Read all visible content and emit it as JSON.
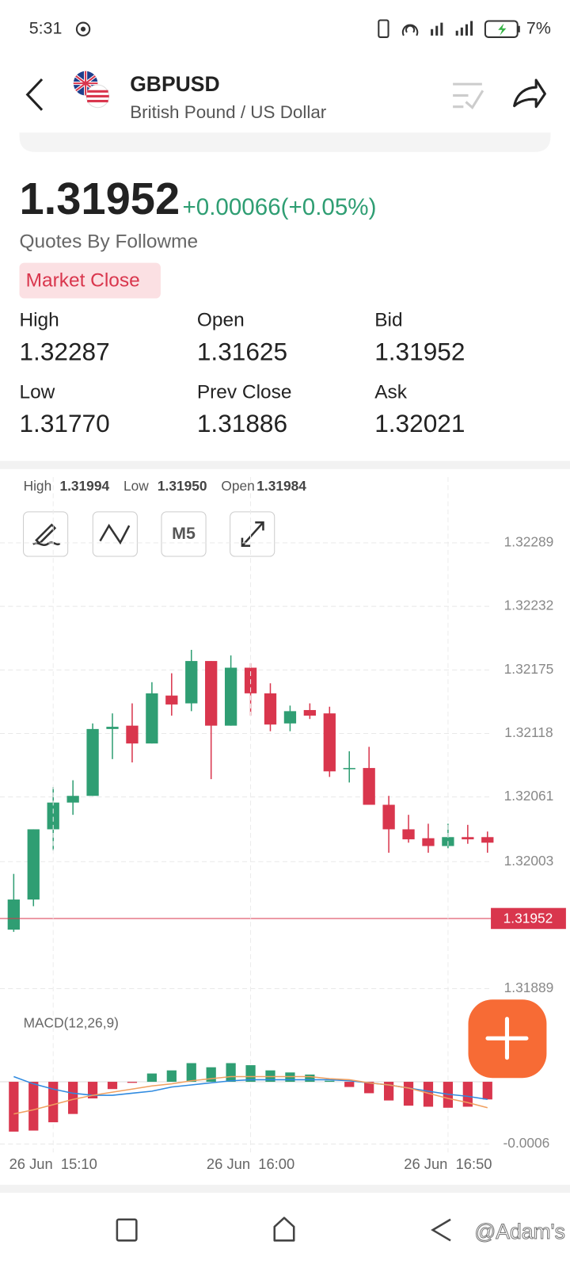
{
  "status_bar": {
    "time": "5:31",
    "battery": "7%"
  },
  "header": {
    "symbol": "GBPUSD",
    "name": "British Pound / US Dollar"
  },
  "quote": {
    "price": "1.31952",
    "change": "+0.00066(+0.05%)",
    "source": "Quotes By Followme",
    "status": "Market Close"
  },
  "stats": [
    {
      "label": "High",
      "value": "1.32287"
    },
    {
      "label": "Open",
      "value": "1.31625"
    },
    {
      "label": "Bid",
      "value": "1.31952"
    },
    {
      "label": "Low",
      "value": "1.31770"
    },
    {
      "label": "Prev Close",
      "value": "1.31886"
    },
    {
      "label": "Ask",
      "value": "1.32021"
    }
  ],
  "chart_toolbar": {
    "info": [
      {
        "label": "High",
        "value": "1.31994"
      },
      {
        "label": "Low",
        "value": "1.31950"
      },
      {
        "label": "Open",
        "value": "1.31984"
      }
    ],
    "period": "M5"
  },
  "chart_data": [
    {
      "type": "candlestick",
      "open": [
        1.31942,
        1.31969,
        1.32032,
        1.32056,
        1.32062,
        1.32122,
        1.32125,
        1.32109,
        1.32152,
        1.32145,
        1.32183,
        1.32125,
        1.32177,
        1.32154,
        1.32127,
        1.32139,
        1.32136,
        1.32086,
        1.32087,
        1.32054,
        1.32032,
        1.32024,
        1.32017,
        1.32025,
        1.32025
      ],
      "high": [
        1.31992,
        1.32032,
        1.3207,
        1.32076,
        1.32127,
        1.32136,
        1.32145,
        1.32164,
        1.32172,
        1.32193,
        1.32183,
        1.32188,
        1.32181,
        1.32163,
        1.32143,
        1.32145,
        1.32142,
        1.32102,
        1.32106,
        1.32062,
        1.32045,
        1.32037,
        1.32037,
        1.32036,
        1.3203
      ],
      "low": [
        1.3194,
        1.31963,
        1.32013,
        1.32045,
        1.32062,
        1.32095,
        1.32092,
        1.32109,
        1.32134,
        1.32138,
        1.32077,
        1.32125,
        1.32134,
        1.3212,
        1.3212,
        1.32131,
        1.32079,
        1.32074,
        1.32054,
        1.32011,
        1.3202,
        1.32011,
        1.32015,
        1.32019,
        1.32011
      ],
      "close": [
        1.31969,
        1.32032,
        1.32056,
        1.32062,
        1.32122,
        1.32124,
        1.32109,
        1.32154,
        1.32144,
        1.32183,
        1.32125,
        1.32177,
        1.32154,
        1.32126,
        1.32138,
        1.32134,
        1.32084,
        1.32087,
        1.32054,
        1.32032,
        1.32023,
        1.32017,
        1.32025,
        1.32023,
        1.3202
      ],
      "up_color": "#2f9e73",
      "down_color": "#d9364d",
      "last_price": 1.31952,
      "ylim": [
        1.3188,
        1.32348
      ],
      "yticks": [
        1.32289,
        1.32232,
        1.32175,
        1.32118,
        1.32061,
        1.32003,
        1.31889
      ],
      "grid": true
    },
    {
      "type": "macd",
      "title": "MACD(12,26,9)",
      "categories": [
        null,
        null,
        "26 Jun  15:10",
        null,
        null,
        null,
        null,
        null,
        null,
        null,
        null,
        null,
        "26 Jun  16:00",
        null,
        null,
        null,
        null,
        null,
        null,
        null,
        null,
        null,
        "26 Jun  16:50",
        null,
        null
      ],
      "values": [
        -0.00048,
        -0.00047,
        -0.00039,
        -0.00031,
        -0.00016,
        -7e-05,
        -1e-05,
        8e-05,
        0.00011,
        0.00018,
        0.00014,
        0.00018,
        0.00016,
        0.00011,
        9e-05,
        7e-05,
        1e-05,
        -5e-05,
        -0.00011,
        -0.00018,
        -0.00023,
        -0.00024,
        -0.00025,
        -0.00024,
        -0.00017
      ],
      "up_color": "#2f9e73",
      "down_color": "#d9364d",
      "series": [
        {
          "color": "#2f8ae0",
          "values": [
            5e-05,
            -2e-05,
            -7e-05,
            -0.00011,
            -0.00013,
            -0.00013,
            -0.00011,
            -9e-05,
            -5e-05,
            -3e-05,
            -1e-05,
            1e-05,
            2e-05,
            2e-05,
            2e-05,
            2e-05,
            2e-05,
            1e-05,
            -1e-05,
            -3e-05,
            -6e-05,
            -9e-05,
            -0.00012,
            -0.00014,
            -0.00017
          ]
        },
        {
          "color": "#f0a060",
          "values": [
            -0.00031,
            -0.00027,
            -0.00022,
            -0.00017,
            -0.00013,
            -0.0001,
            -7e-05,
            -4e-05,
            -2e-05,
            1e-05,
            3e-05,
            5e-05,
            5e-05,
            5e-05,
            5e-05,
            5e-05,
            3e-05,
            2e-05,
            -1e-05,
            -3e-05,
            -6e-05,
            -0.00011,
            -0.00016,
            -0.0002,
            -0.00025
          ]
        }
      ],
      "ylim": [
        -0.00068,
        0.00045
      ],
      "yticks": [
        -0.0006
      ],
      "grid": true
    }
  ],
  "watermark": "@Adam's"
}
